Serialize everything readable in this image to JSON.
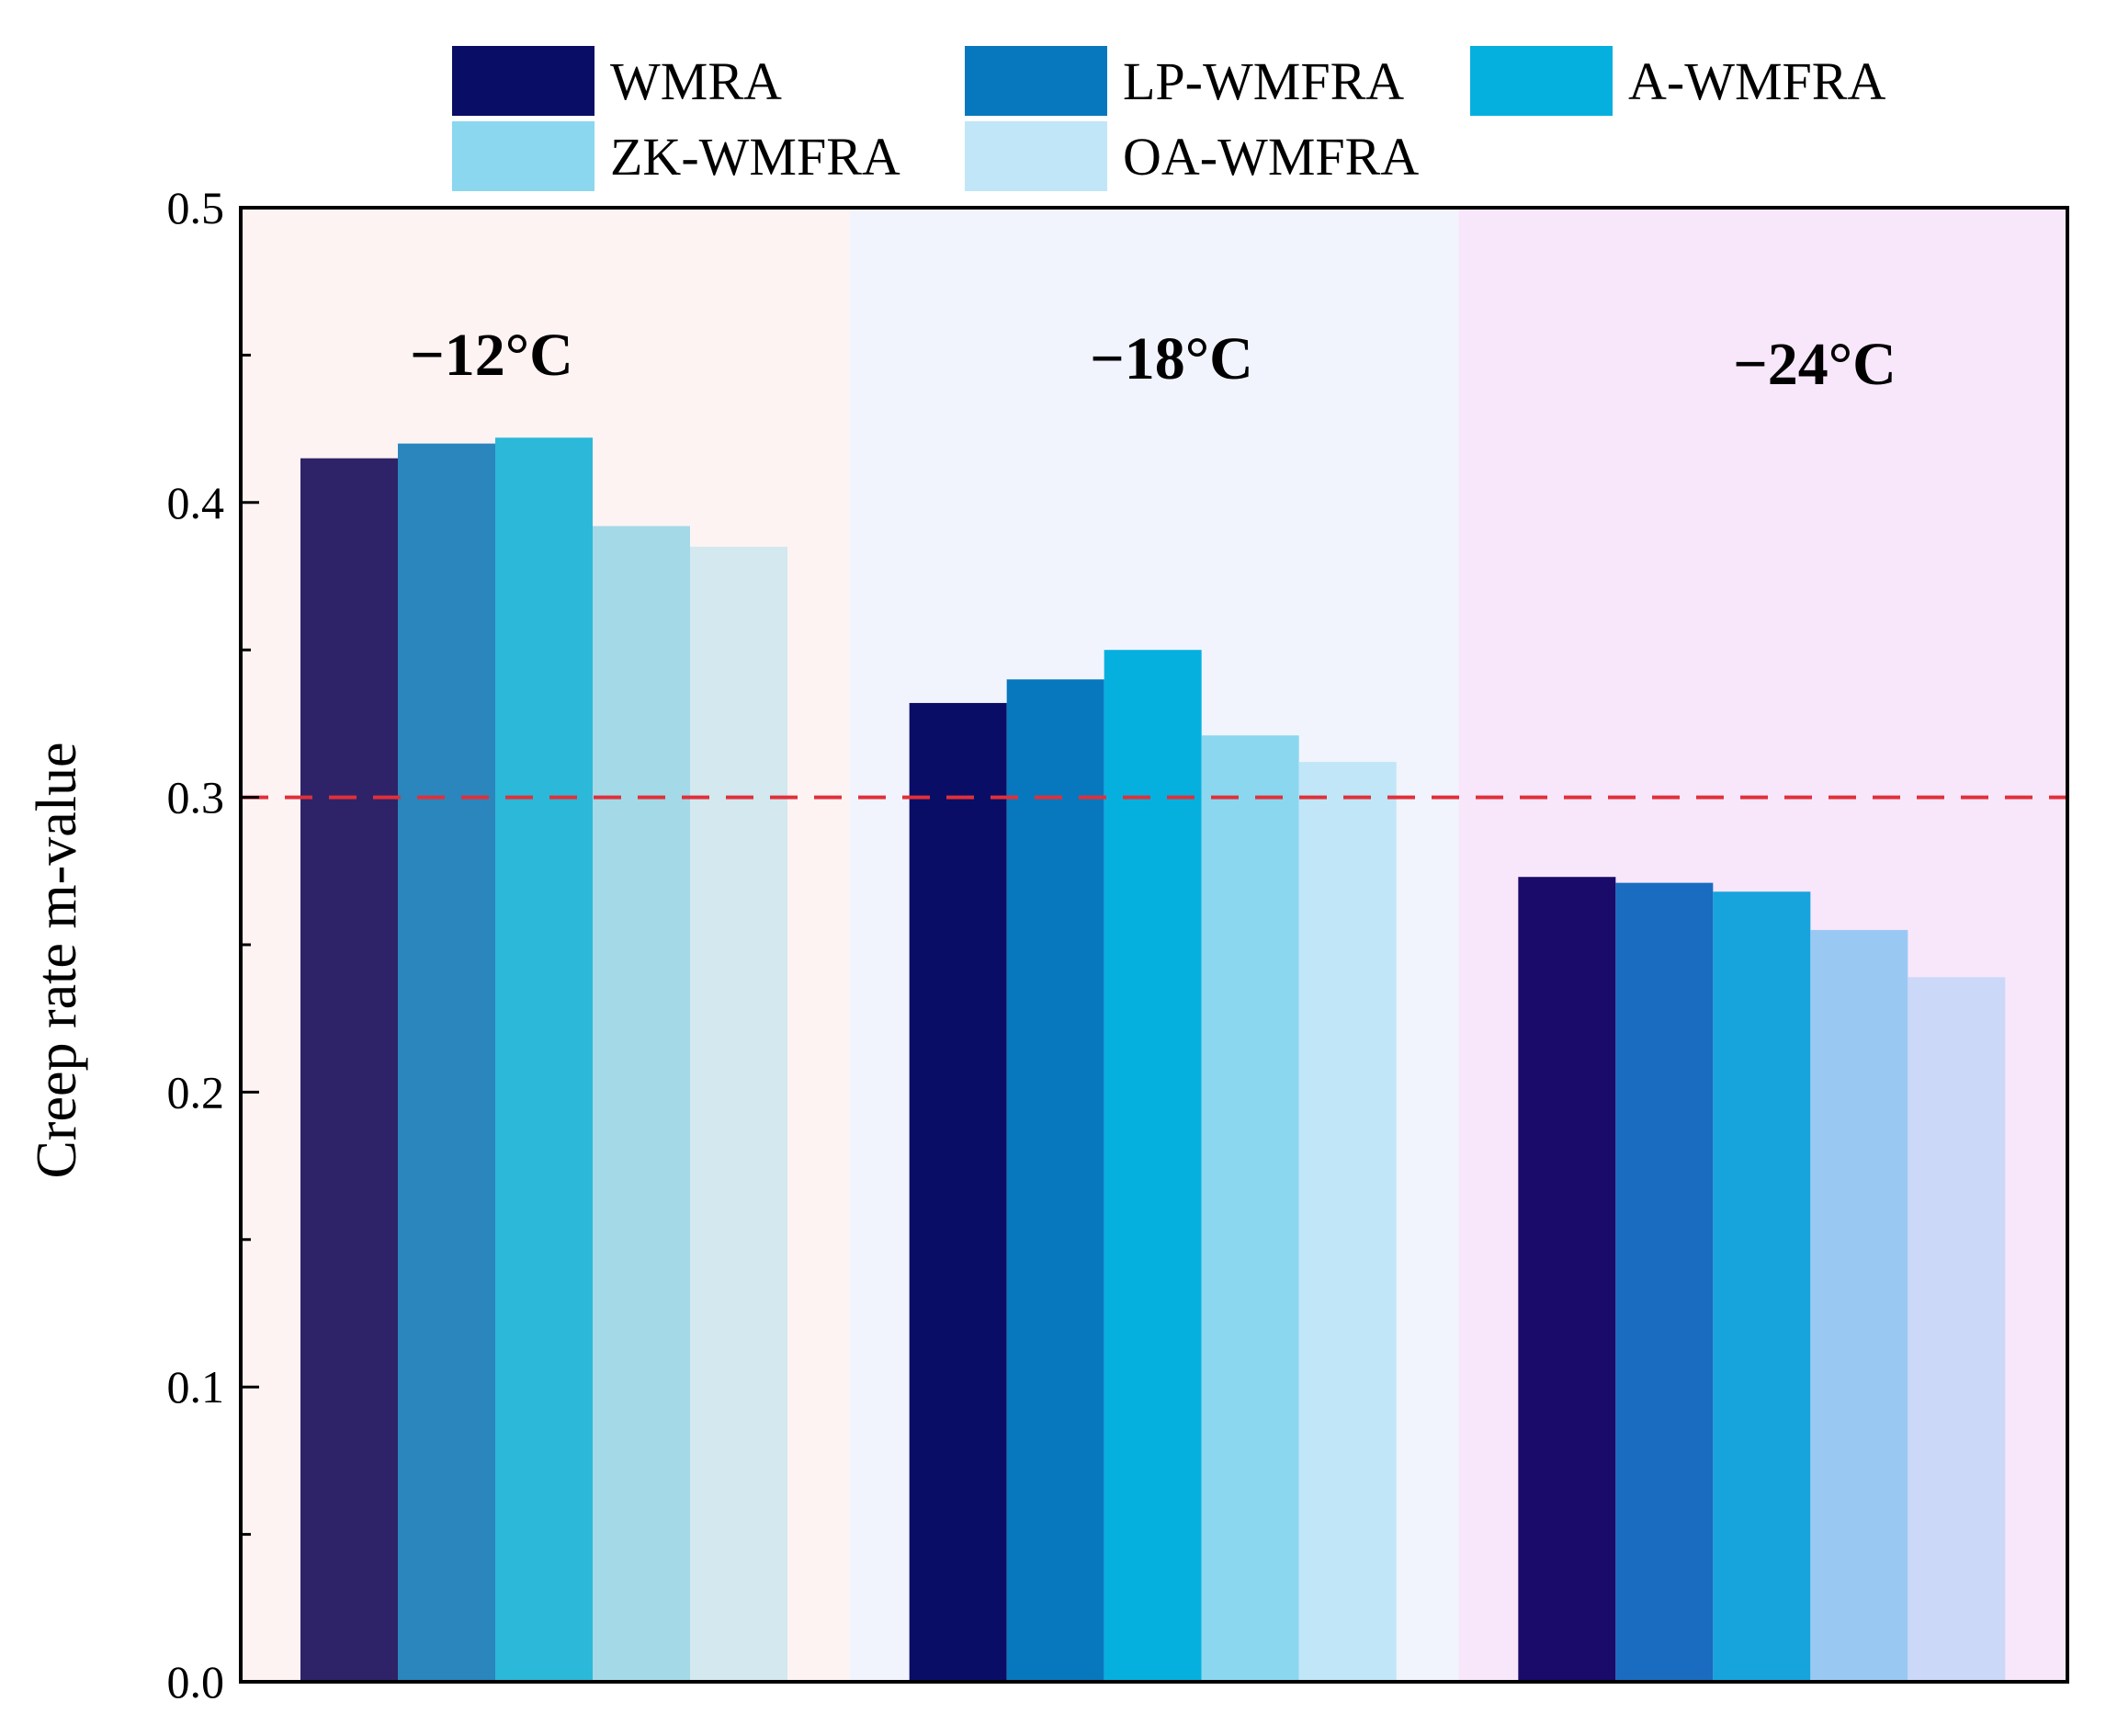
{
  "chart_data": {
    "type": "bar",
    "title": "",
    "xlabel": "",
    "ylabel": "Creep rate m-value",
    "ylim": [
      0,
      0.5
    ],
    "yticks": [
      "0.0",
      "0.1",
      "0.2",
      "0.3",
      "0.4",
      "0.5"
    ],
    "grid": false,
    "legend_position": "top",
    "categories": [
      "−12°C",
      "−18°C",
      "−24°C"
    ],
    "category_backgrounds": [
      "#fdf3f3",
      "#f1f4fd",
      "#f8e7fb"
    ],
    "reference_line": {
      "y": 0.3,
      "color": "#e0303a",
      "style": "dashed"
    },
    "series": [
      {
        "name": "WMRA",
        "values": [
          0.415,
          0.332,
          0.273
        ],
        "colors": [
          "#2e2368",
          "#0a0d66",
          "#1a0a6a"
        ]
      },
      {
        "name": "LP-WMFRA",
        "values": [
          0.42,
          0.34,
          0.271
        ],
        "colors": [
          "#2a86bd",
          "#0878be",
          "#1a6cc0"
        ]
      },
      {
        "name": "A-WMFRA",
        "values": [
          0.422,
          0.35,
          0.268
        ],
        "colors": [
          "#2cb8d8",
          "#06b0de",
          "#17a4dd"
        ]
      },
      {
        "name": "ZK-WMFRA",
        "values": [
          0.392,
          0.321,
          0.255
        ],
        "colors": [
          "#a4d9e8",
          "#8ad7ef",
          "#99c9f2"
        ]
      },
      {
        "name": "OA-WMFRA",
        "values": [
          0.385,
          0.312,
          0.239
        ],
        "colors": [
          "#d3e8ef",
          "#c0e6f7",
          "#ccd8f7"
        ]
      }
    ],
    "legend_colors": [
      "#0a0d66",
      "#0878be",
      "#06b0de",
      "#8ad7ef",
      "#c0e6f7"
    ]
  }
}
